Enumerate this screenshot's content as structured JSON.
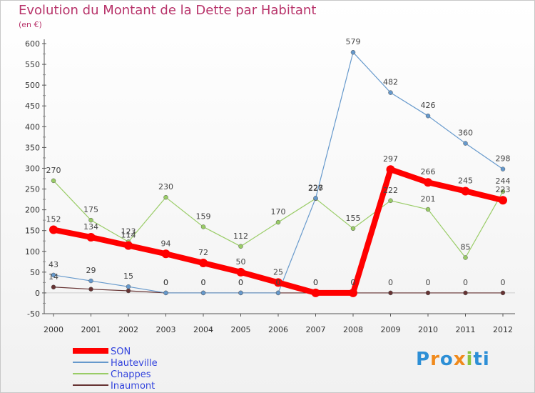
{
  "header": {
    "title": "Evolution du Montant de la Dette par Habitant",
    "subtitle": "(en €)"
  },
  "logo": {
    "letters": [
      "P",
      "r",
      "o",
      "x",
      "i",
      "ti"
    ]
  },
  "chart_data": {
    "type": "line",
    "title": "Evolution du Montant de la Dette par Habitant",
    "ylabel": "(en €)",
    "xlabel": "",
    "x": [
      "2000",
      "2001",
      "2002",
      "2003",
      "2004",
      "2005",
      "2006",
      "2007",
      "2008",
      "2009",
      "2010",
      "2011",
      "2012"
    ],
    "ylim": [
      -50,
      600
    ],
    "yticks": [
      -50,
      0,
      50,
      100,
      150,
      200,
      250,
      300,
      350,
      400,
      450,
      500,
      550,
      600
    ],
    "grid": false,
    "legend": "bottom-left",
    "series": [
      {
        "name": "SON",
        "color": "#ff0000",
        "values": [
          152,
          134,
          114,
          94,
          72,
          50,
          25,
          0,
          0,
          297,
          266,
          245,
          223
        ],
        "labels": [
          "152",
          "134",
          "114",
          "94",
          "72",
          "50",
          "25",
          "0",
          "0",
          "297",
          "266",
          "245",
          "223"
        ]
      },
      {
        "name": "Hauteville",
        "color": "#6699cc",
        "values": [
          43,
          29,
          15,
          0,
          0,
          0,
          0,
          228,
          579,
          482,
          426,
          360,
          298
        ],
        "labels": [
          "43",
          "29",
          "15",
          "0",
          "0",
          "0",
          "0",
          "228",
          "579",
          "482",
          "426",
          "360",
          "298"
        ]
      },
      {
        "name": "Chappes",
        "color": "#99cc66",
        "values": [
          270,
          175,
          123,
          230,
          159,
          112,
          170,
          227,
          155,
          222,
          201,
          85,
          244
        ],
        "labels": [
          "270",
          "175",
          "123",
          "230",
          "159",
          "112",
          "170",
          "227",
          "155",
          "222",
          "201",
          "85",
          "244"
        ]
      },
      {
        "name": "Inaumont",
        "color": "#663333",
        "values": [
          14,
          9,
          5,
          0,
          0,
          0,
          0,
          0,
          0,
          0,
          0,
          0,
          0
        ],
        "labels": [
          "14",
          "",
          "",
          "0",
          "0",
          "0",
          "0",
          "0",
          "0",
          "0",
          "0",
          "0",
          "0"
        ]
      }
    ]
  }
}
